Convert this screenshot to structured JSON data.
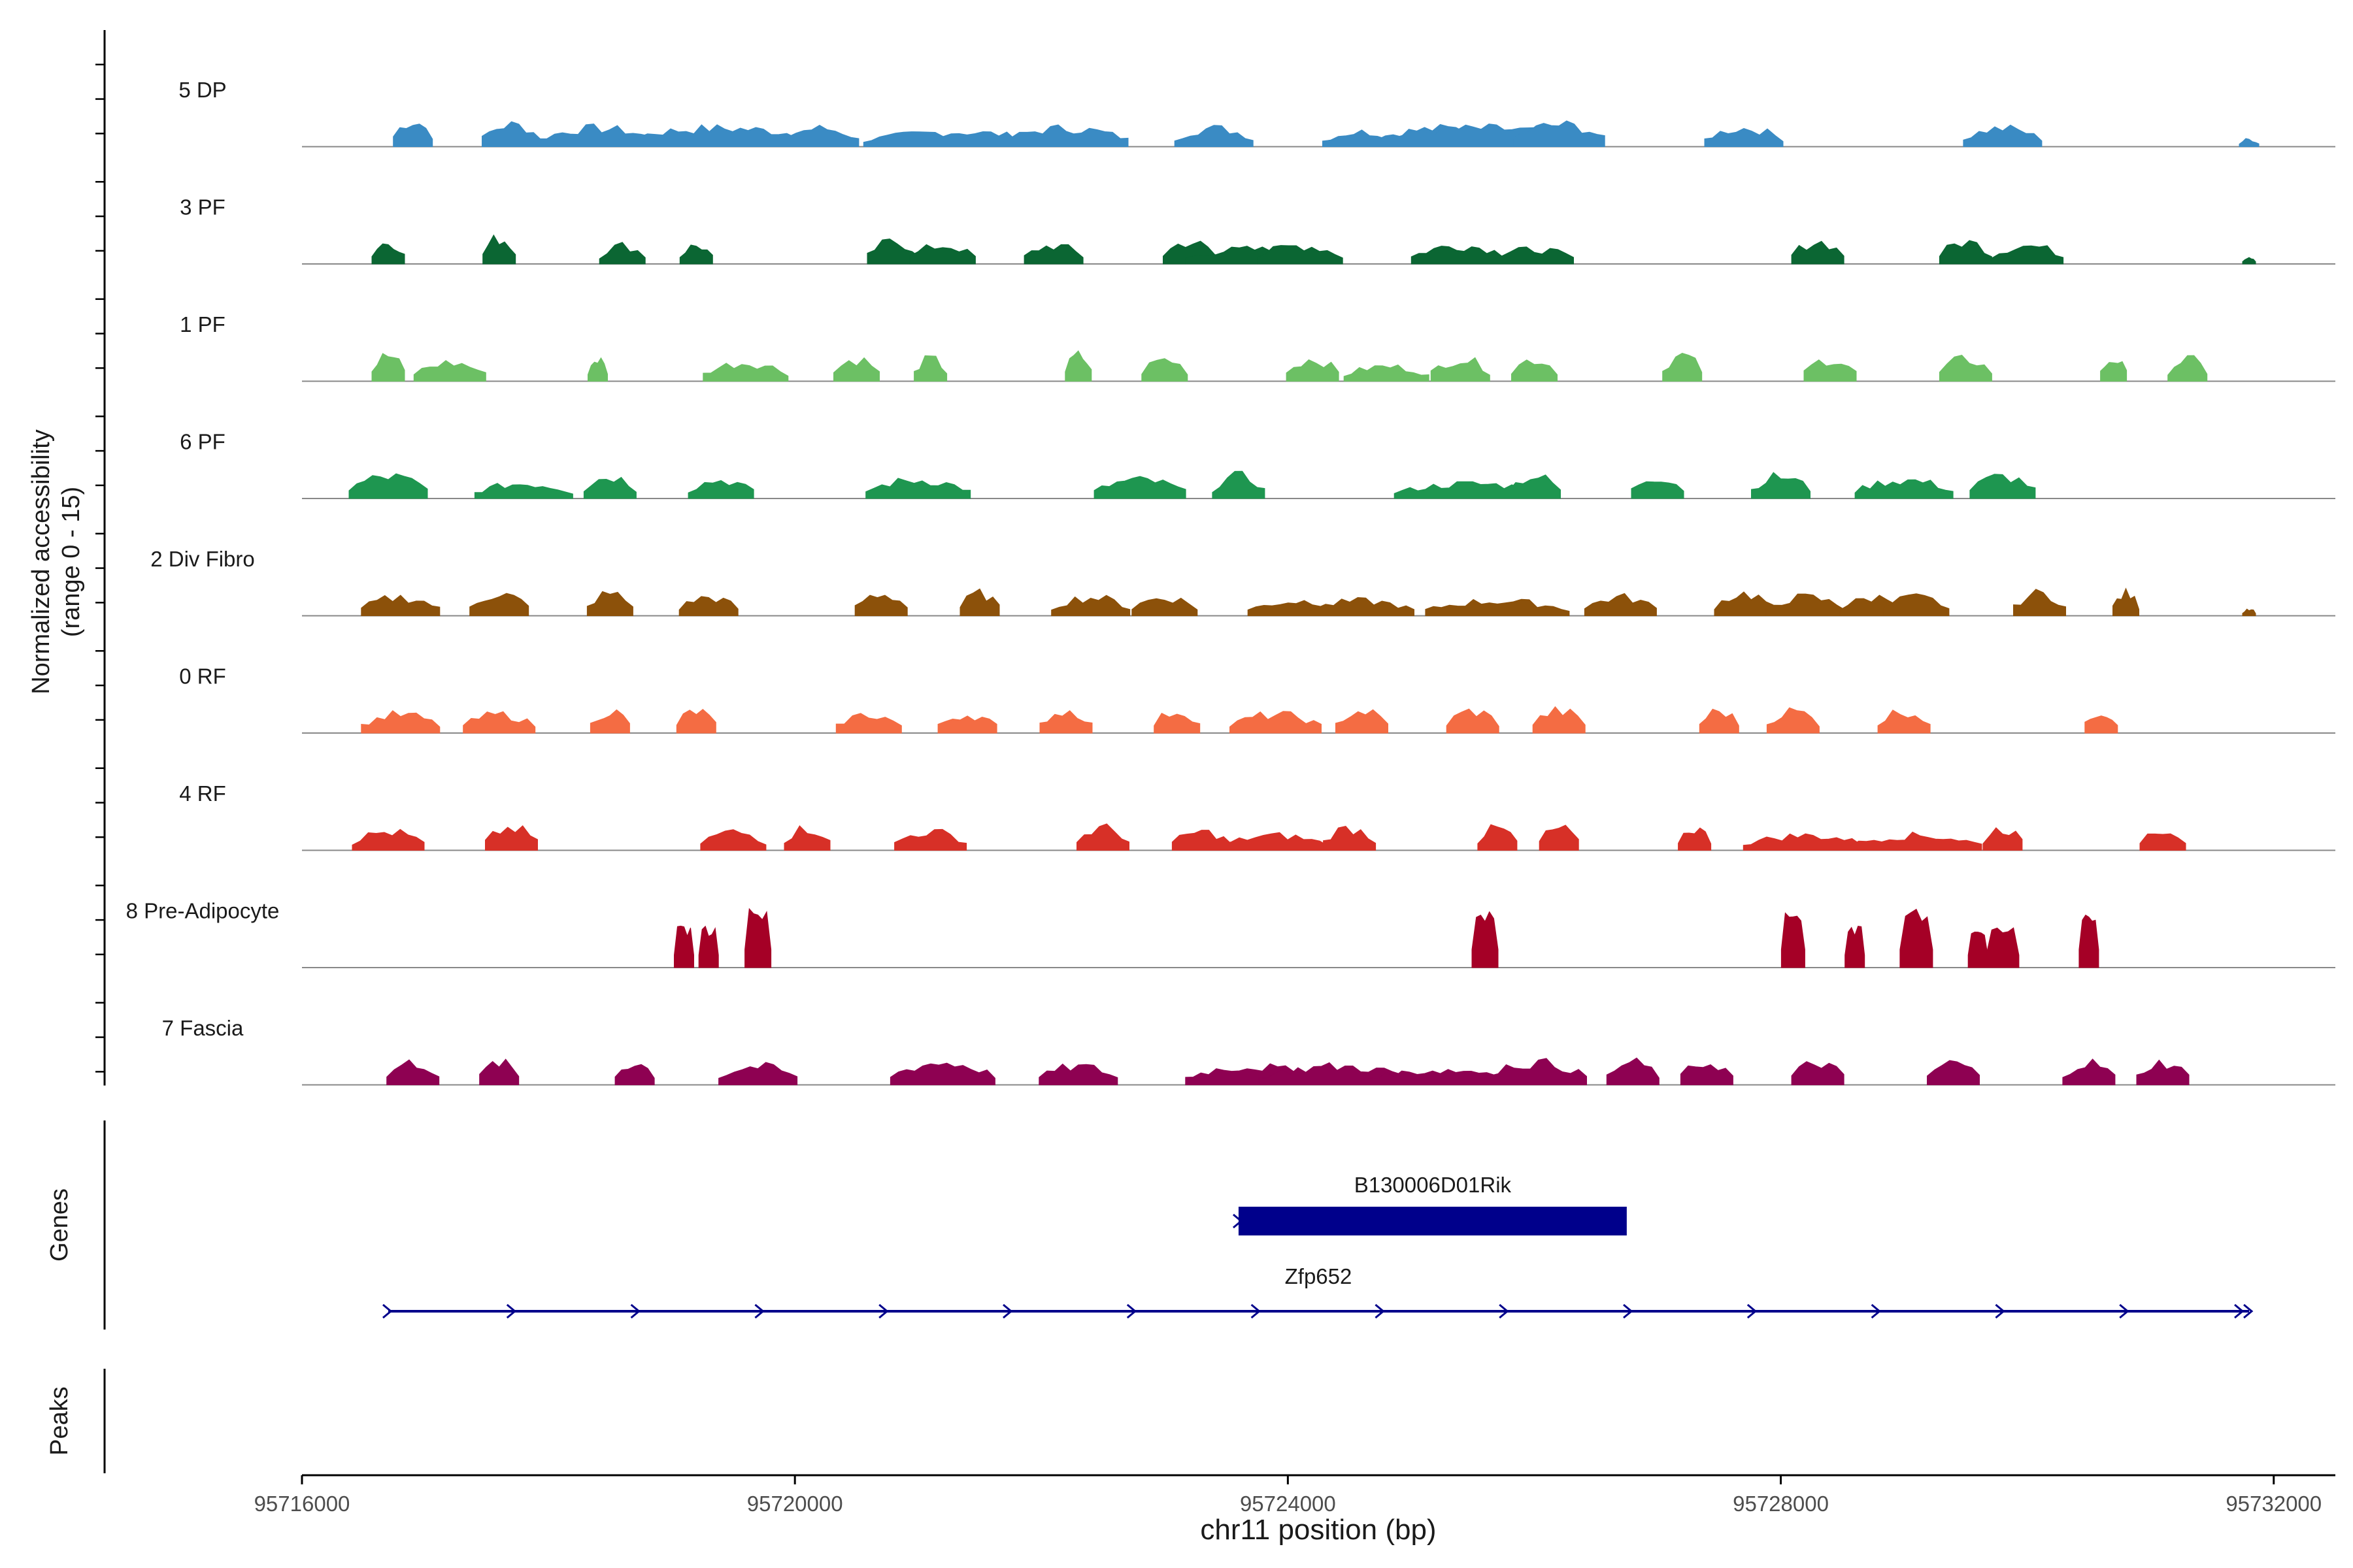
{
  "chart_data": {
    "type": "area",
    "title": "",
    "chromosome": "chr11",
    "y_axis_label_line1": "Normalized accessibility",
    "y_axis_label_line2": "(range 0 - 15)",
    "genes_label": "Genes",
    "peaks_label": "Peaks",
    "xlabel": "chr11 position (bp)",
    "xlim": [
      95716000,
      95732500
    ],
    "ylim": [
      0,
      15
    ],
    "x_ticks": [
      "95716000",
      "95720000",
      "95724000",
      "95728000",
      "95732000"
    ],
    "x_tick_values": [
      95716000,
      95720000,
      95724000,
      95728000,
      95732000
    ],
    "tracks": [
      {
        "name": "5 DP",
        "color": "#3a8bc4",
        "peaks": [
          [
            95716900,
            30,
            0.7
          ],
          [
            95717700,
            45,
            0.6
          ],
          [
            95718400,
            90,
            0.5
          ],
          [
            95719400,
            160,
            0.5
          ],
          [
            95720200,
            60,
            0.5
          ],
          [
            95721300,
            140,
            0.4
          ],
          [
            95722200,
            95,
            0.5
          ],
          [
            95723400,
            60,
            0.5
          ],
          [
            95724600,
            60,
            0.4
          ],
          [
            95725300,
            120,
            0.5
          ],
          [
            95725600,
            160,
            0.5
          ],
          [
            95726200,
            70,
            0.6
          ],
          [
            95727700,
            60,
            0.5
          ],
          [
            95729800,
            60,
            0.5
          ],
          [
            95731800,
            15,
            0.2
          ]
        ]
      },
      {
        "name": "3 PF",
        "color": "#0b6633",
        "peaks": [
          [
            95716700,
            25,
            0.6
          ],
          [
            95717600,
            25,
            0.7
          ],
          [
            95718600,
            35,
            0.5
          ],
          [
            95719200,
            25,
            0.5
          ],
          [
            95720800,
            40,
            0.6
          ],
          [
            95721200,
            50,
            0.5
          ],
          [
            95722100,
            45,
            0.5
          ],
          [
            95723200,
            40,
            0.6
          ],
          [
            95723700,
            100,
            0.4
          ],
          [
            95724100,
            65,
            0.5
          ],
          [
            95725400,
            75,
            0.5
          ],
          [
            95726000,
            60,
            0.4
          ],
          [
            95728300,
            40,
            0.6
          ],
          [
            95729500,
            40,
            0.6
          ],
          [
            95730000,
            55,
            0.5
          ],
          [
            95731800,
            10,
            0.2
          ]
        ]
      },
      {
        "name": "1 PF",
        "color": "#6cc064",
        "peaks": [
          [
            95716700,
            25,
            0.7
          ],
          [
            95717200,
            55,
            0.5
          ],
          [
            95718400,
            15,
            0.6
          ],
          [
            95719600,
            65,
            0.5
          ],
          [
            95720500,
            35,
            0.6
          ],
          [
            95721100,
            25,
            0.6
          ],
          [
            95722300,
            20,
            0.7
          ],
          [
            95723000,
            35,
            0.6
          ],
          [
            95724200,
            40,
            0.6
          ],
          [
            95724800,
            65,
            0.4
          ],
          [
            95725400,
            45,
            0.6
          ],
          [
            95726000,
            35,
            0.6
          ],
          [
            95727200,
            30,
            0.7
          ],
          [
            95728400,
            40,
            0.6
          ],
          [
            95729500,
            40,
            0.6
          ],
          [
            95730700,
            20,
            0.6
          ],
          [
            95731300,
            30,
            0.6
          ]
        ]
      },
      {
        "name": "6 PF",
        "color": "#1e9650",
        "peaks": [
          [
            95716700,
            60,
            0.6
          ],
          [
            95717800,
            75,
            0.4
          ],
          [
            95718500,
            40,
            0.6
          ],
          [
            95719400,
            50,
            0.5
          ],
          [
            95721000,
            80,
            0.5
          ],
          [
            95722800,
            70,
            0.5
          ],
          [
            95723600,
            40,
            0.6
          ],
          [
            95725500,
            120,
            0.4
          ],
          [
            95726000,
            40,
            0.6
          ],
          [
            95727000,
            40,
            0.6
          ],
          [
            95728000,
            45,
            0.6
          ],
          [
            95729000,
            75,
            0.5
          ],
          [
            95729800,
            50,
            0.6
          ]
        ]
      },
      {
        "name": "2 Div Fibro",
        "color": "#8c510a",
        "peaks": [
          [
            95716800,
            60,
            0.5
          ],
          [
            95717600,
            45,
            0.6
          ],
          [
            95718500,
            35,
            0.6
          ],
          [
            95719300,
            45,
            0.5
          ],
          [
            95720700,
            40,
            0.6
          ],
          [
            95721500,
            30,
            0.6
          ],
          [
            95722400,
            60,
            0.5
          ],
          [
            95723000,
            50,
            0.5
          ],
          [
            95724100,
            80,
            0.4
          ],
          [
            95724600,
            80,
            0.4
          ],
          [
            95725700,
            110,
            0.4
          ],
          [
            95726700,
            55,
            0.5
          ],
          [
            95727700,
            45,
            0.6
          ],
          [
            95728200,
            60,
            0.5
          ],
          [
            95728800,
            60,
            0.5
          ],
          [
            95729100,
            50,
            0.5
          ],
          [
            95730100,
            40,
            0.6
          ],
          [
            95730800,
            20,
            0.6
          ],
          [
            95731800,
            10,
            0.2
          ]
        ]
      },
      {
        "name": "0 RF",
        "color": "#f46c43",
        "peaks": [
          [
            95716800,
            60,
            0.5
          ],
          [
            95717600,
            55,
            0.5
          ],
          [
            95718500,
            30,
            0.6
          ],
          [
            95719200,
            30,
            0.6
          ],
          [
            95720600,
            50,
            0.5
          ],
          [
            95721400,
            45,
            0.5
          ],
          [
            95722200,
            40,
            0.6
          ],
          [
            95723100,
            35,
            0.6
          ],
          [
            95723900,
            70,
            0.5
          ],
          [
            95724600,
            40,
            0.6
          ],
          [
            95725500,
            40,
            0.6
          ],
          [
            95726200,
            40,
            0.6
          ],
          [
            95727500,
            30,
            0.6
          ],
          [
            95728100,
            40,
            0.6
          ],
          [
            95729000,
            40,
            0.6
          ],
          [
            95730600,
            25,
            0.6
          ]
        ]
      },
      {
        "name": "4 RF",
        "color": "#d73027",
        "peaks": [
          [
            95716700,
            55,
            0.5
          ],
          [
            95717700,
            40,
            0.6
          ],
          [
            95719500,
            50,
            0.5
          ],
          [
            95720100,
            35,
            0.6
          ],
          [
            95721100,
            55,
            0.5
          ],
          [
            95722500,
            40,
            0.6
          ],
          [
            95723300,
            45,
            0.5
          ],
          [
            95723900,
            80,
            0.4
          ],
          [
            95724500,
            40,
            0.6
          ],
          [
            95725700,
            30,
            0.6
          ],
          [
            95726200,
            30,
            0.6
          ],
          [
            95727300,
            25,
            0.6
          ],
          [
            95728200,
            95,
            0.4
          ],
          [
            95729100,
            100,
            0.4
          ],
          [
            95729800,
            30,
            0.6
          ],
          [
            95731100,
            35,
            0.6
          ]
        ]
      },
      {
        "name": "8 Pre-Adipocyte",
        "color": "#a50026",
        "peaks": [
          [
            95719100,
            15,
            0.9
          ],
          [
            95719300,
            15,
            0.9
          ],
          [
            95719700,
            20,
            1.3
          ],
          [
            95725600,
            20,
            1.3
          ],
          [
            95728100,
            18,
            1.3
          ],
          [
            95728600,
            15,
            0.9
          ],
          [
            95729100,
            25,
            1.3
          ],
          [
            95729600,
            15,
            0.9
          ],
          [
            95729800,
            25,
            0.9
          ],
          [
            95730500,
            15,
            1.3
          ]
        ]
      },
      {
        "name": "7 Fascia",
        "color": "#8e0152",
        "peaks": [
          [
            95716900,
            40,
            0.6
          ],
          [
            95717600,
            30,
            0.6
          ],
          [
            95718700,
            30,
            0.6
          ],
          [
            95719700,
            60,
            0.5
          ],
          [
            95721200,
            80,
            0.6
          ],
          [
            95722300,
            60,
            0.5
          ],
          [
            95723700,
            100,
            0.5
          ],
          [
            95724400,
            120,
            0.5
          ],
          [
            95725300,
            130,
            0.4
          ],
          [
            95726000,
            80,
            0.6
          ],
          [
            95726800,
            40,
            0.6
          ],
          [
            95727400,
            40,
            0.6
          ],
          [
            95728300,
            40,
            0.6
          ],
          [
            95729400,
            40,
            0.6
          ],
          [
            95730500,
            40,
            0.6
          ],
          [
            95731100,
            40,
            0.6
          ]
        ]
      }
    ],
    "genes": [
      {
        "name": "B130006D01Rik",
        "start": 95723600,
        "end": 95726750,
        "strand": "+",
        "style": "thick"
      },
      {
        "name": "Zfp652",
        "start": 95716700,
        "end": 95731800,
        "strand": "+",
        "style": "thin"
      }
    ],
    "colors": {
      "gene": "#00008b",
      "baseline": "#888888",
      "axis": "#000000"
    }
  }
}
